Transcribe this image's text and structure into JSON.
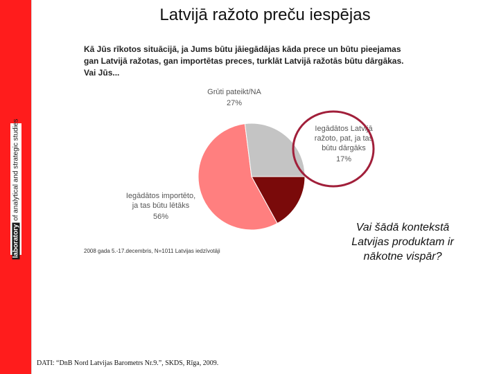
{
  "page": {
    "title": "Latvijā ražoto preču iespējas",
    "question": "Kā Jūs rīkotos situācijā, ja Jums būtu jāiegādājas kāda prece un būtu pieejamas gan Latvijā ražotas, gan importētas preces, turklāt Latvijā ražotās būtu dārgākas. Vai Jūs...",
    "side_question": "Vai šādā kontekstā Latvijas produktam ir nākotne vispār?",
    "source_note": "2008 gada 5.-17.decembris, N=1011 Latvijas iedzīvotāji",
    "footer": "DATI: “DnB Nord Latvijas Barometrs Nr.9.”, SKDS, Rīga, 2009."
  },
  "sidebar": {
    "brand_bold": "laboratory",
    "brand_rest": "of analytical and strategic studies",
    "color": "#ff1c1c"
  },
  "chart_data": {
    "type": "pie",
    "title": "",
    "slices": [
      {
        "label": "Iegādātos Latvijā ražoto, pat, ja tas būtu dārgāks",
        "value": 17,
        "value_label": "17%",
        "color": "#7a0a0a",
        "highlighted": true
      },
      {
        "label": "Iegādātos importēto, ja tas būtu lētāks",
        "value": 56,
        "value_label": "56%",
        "color": "#ff7f7f"
      },
      {
        "label": "Grūti pateikt/NA",
        "value": 27,
        "value_label": "27%",
        "color": "#c4c4c4"
      }
    ],
    "start_direction": "east",
    "order": "clockwise",
    "labels_position": "outside"
  },
  "colors": {
    "highlight_ring": "#a11f3a",
    "label_text": "#555555"
  }
}
